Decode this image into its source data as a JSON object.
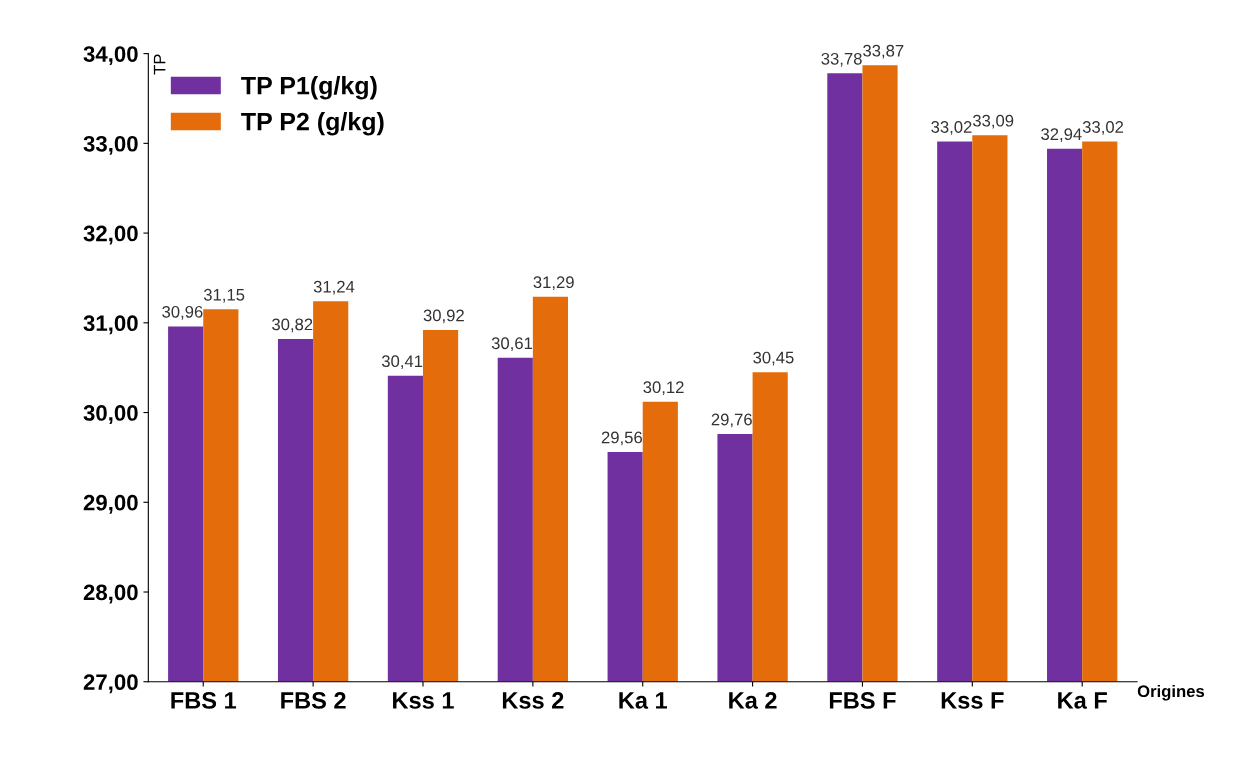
{
  "chart_data": {
    "type": "bar",
    "ylabel": "TP",
    "xlabel": "Origines",
    "categories": [
      "FBS 1",
      "FBS 2",
      "Kss 1",
      "Kss 2",
      "Ka 1",
      "Ka 2",
      "FBS F",
      "Kss F",
      "Ka F"
    ],
    "series": [
      {
        "name": "TP P1(g/kg)",
        "color": "#7030a0",
        "values": [
          30.96,
          30.82,
          30.41,
          30.61,
          29.56,
          29.76,
          33.78,
          33.02,
          32.94
        ],
        "value_labels": [
          "30,96",
          "30,82",
          "30,41",
          "30,61",
          "29,56",
          "29,76",
          "33,78",
          "33,02",
          "32,94"
        ]
      },
      {
        "name": "TP P2 (g/kg)",
        "color": "#e46c0a",
        "values": [
          31.15,
          31.24,
          30.92,
          31.29,
          30.12,
          30.45,
          33.87,
          33.09,
          33.02
        ],
        "value_labels": [
          "31,15",
          "31,24",
          "30,92",
          "31,29",
          "30,12",
          "30,45",
          "33,87",
          "33,09",
          "33,02"
        ]
      }
    ],
    "ylim": [
      27,
      34
    ],
    "yticks": [
      {
        "value": 27,
        "label": "27,00"
      },
      {
        "value": 28,
        "label": "28,00"
      },
      {
        "value": 29,
        "label": "29,00"
      },
      {
        "value": 30,
        "label": "30,00"
      },
      {
        "value": 31,
        "label": "31,00"
      },
      {
        "value": 32,
        "label": "32,00"
      },
      {
        "value": 33,
        "label": "33,00"
      },
      {
        "value": 34,
        "label": "34,00"
      }
    ],
    "grid": false,
    "legend": "top left"
  }
}
